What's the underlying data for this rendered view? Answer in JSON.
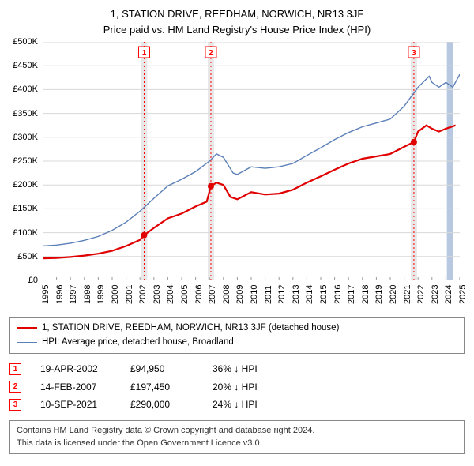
{
  "title": {
    "line1": "1, STATION DRIVE, REEDHAM, NORWICH, NR13 3JF",
    "line2": "Price paid vs. HM Land Registry's House Price Index (HPI)",
    "fontsize": 13,
    "color": "#000000"
  },
  "chart": {
    "type": "line",
    "background_color": "#ffffff",
    "grid_color": "#d8d8d8",
    "axis_color": "#9a9a9a",
    "label_fontsize": 11,
    "x": {
      "min": 1995,
      "max": 2025,
      "ticks": [
        1995,
        1996,
        1997,
        1998,
        1999,
        2000,
        2001,
        2002,
        2003,
        2004,
        2005,
        2006,
        2007,
        2008,
        2009,
        2010,
        2011,
        2012,
        2013,
        2014,
        2015,
        2016,
        2017,
        2018,
        2019,
        2020,
        2021,
        2022,
        2023,
        2024,
        2025
      ]
    },
    "y": {
      "min": 0,
      "max": 500000,
      "step": 50000,
      "ticks": [
        0,
        50000,
        100000,
        150000,
        200000,
        250000,
        300000,
        350000,
        400000,
        450000,
        500000
      ],
      "labels": [
        "£0",
        "£50K",
        "£100K",
        "£150K",
        "£200K",
        "£250K",
        "£300K",
        "£350K",
        "£400K",
        "£450K",
        "£500K"
      ]
    },
    "vertical_bands": [
      {
        "x": 2002.3,
        "color": "#e8e8e8"
      },
      {
        "x": 2007.1,
        "color": "#e8e8e8"
      },
      {
        "x": 2021.7,
        "color": "#e8e8e8"
      },
      {
        "x": 2024.3,
        "color": "#b8c8e0",
        "noMarker": true
      }
    ],
    "marker_lines": [
      {
        "x": 2002.3,
        "label": "1",
        "color": "#ff0000"
      },
      {
        "x": 2007.1,
        "label": "2",
        "color": "#ff0000"
      },
      {
        "x": 2021.7,
        "label": "3",
        "color": "#ff0000"
      }
    ],
    "series": [
      {
        "name": "price_paid",
        "label": "1, STATION DRIVE, REEDHAM, NORWICH, NR13 3JF (detached house)",
        "color": "#e00000",
        "width": 2.2,
        "points": [
          [
            1995,
            46000
          ],
          [
            1996,
            47000
          ],
          [
            1997,
            49000
          ],
          [
            1998,
            52000
          ],
          [
            1999,
            56000
          ],
          [
            2000,
            62000
          ],
          [
            2001,
            72000
          ],
          [
            2002,
            85000
          ],
          [
            2002.3,
            94950
          ],
          [
            2003,
            110000
          ],
          [
            2004,
            130000
          ],
          [
            2005,
            140000
          ],
          [
            2006,
            155000
          ],
          [
            2006.8,
            165000
          ],
          [
            2007.1,
            197450
          ],
          [
            2007.5,
            205000
          ],
          [
            2008,
            200000
          ],
          [
            2008.5,
            175000
          ],
          [
            2009,
            170000
          ],
          [
            2010,
            185000
          ],
          [
            2011,
            180000
          ],
          [
            2012,
            182000
          ],
          [
            2013,
            190000
          ],
          [
            2014,
            205000
          ],
          [
            2015,
            218000
          ],
          [
            2016,
            232000
          ],
          [
            2017,
            245000
          ],
          [
            2018,
            255000
          ],
          [
            2019,
            260000
          ],
          [
            2020,
            265000
          ],
          [
            2021,
            280000
          ],
          [
            2021.7,
            290000
          ],
          [
            2022,
            312000
          ],
          [
            2022.6,
            325000
          ],
          [
            2023,
            318000
          ],
          [
            2023.5,
            312000
          ],
          [
            2024,
            318000
          ],
          [
            2024.7,
            325000
          ]
        ],
        "dots": [
          [
            2002.3,
            94950
          ],
          [
            2007.1,
            197450
          ],
          [
            2021.7,
            290000
          ]
        ]
      },
      {
        "name": "hpi",
        "label": "HPI: Average price, detached house, Broadland",
        "color": "#5b7fb8",
        "width": 1.4,
        "points": [
          [
            1995,
            72000
          ],
          [
            1996,
            74000
          ],
          [
            1997,
            78000
          ],
          [
            1998,
            84000
          ],
          [
            1999,
            92000
          ],
          [
            2000,
            105000
          ],
          [
            2001,
            122000
          ],
          [
            2002,
            145000
          ],
          [
            2003,
            172000
          ],
          [
            2004,
            198000
          ],
          [
            2005,
            212000
          ],
          [
            2006,
            228000
          ],
          [
            2007,
            250000
          ],
          [
            2007.5,
            265000
          ],
          [
            2008,
            258000
          ],
          [
            2008.7,
            225000
          ],
          [
            2009,
            222000
          ],
          [
            2010,
            238000
          ],
          [
            2011,
            235000
          ],
          [
            2012,
            238000
          ],
          [
            2013,
            245000
          ],
          [
            2014,
            262000
          ],
          [
            2015,
            278000
          ],
          [
            2016,
            295000
          ],
          [
            2017,
            310000
          ],
          [
            2018,
            322000
          ],
          [
            2019,
            330000
          ],
          [
            2020,
            338000
          ],
          [
            2021,
            365000
          ],
          [
            2022,
            405000
          ],
          [
            2022.8,
            428000
          ],
          [
            2023,
            415000
          ],
          [
            2023.5,
            405000
          ],
          [
            2024,
            415000
          ],
          [
            2024.5,
            405000
          ],
          [
            2025,
            432000
          ]
        ]
      }
    ]
  },
  "legend": {
    "border_color": "#888888",
    "fontsize": 11.5
  },
  "sales": [
    {
      "n": "1",
      "date": "19-APR-2002",
      "price": "£94,950",
      "delta": "36% ↓ HPI"
    },
    {
      "n": "2",
      "date": "14-FEB-2007",
      "price": "£197,450",
      "delta": "20% ↓ HPI"
    },
    {
      "n": "3",
      "date": "10-SEP-2021",
      "price": "£290,000",
      "delta": "24% ↓ HPI"
    }
  ],
  "sales_marker_color": "#ff0000",
  "sales_fontsize": 12,
  "attribution": {
    "line1": "Contains HM Land Registry data © Crown copyright and database right 2024.",
    "line2": "This data is licensed under the Open Government Licence v3.0.",
    "border_color": "#888888",
    "fontsize": 11
  }
}
